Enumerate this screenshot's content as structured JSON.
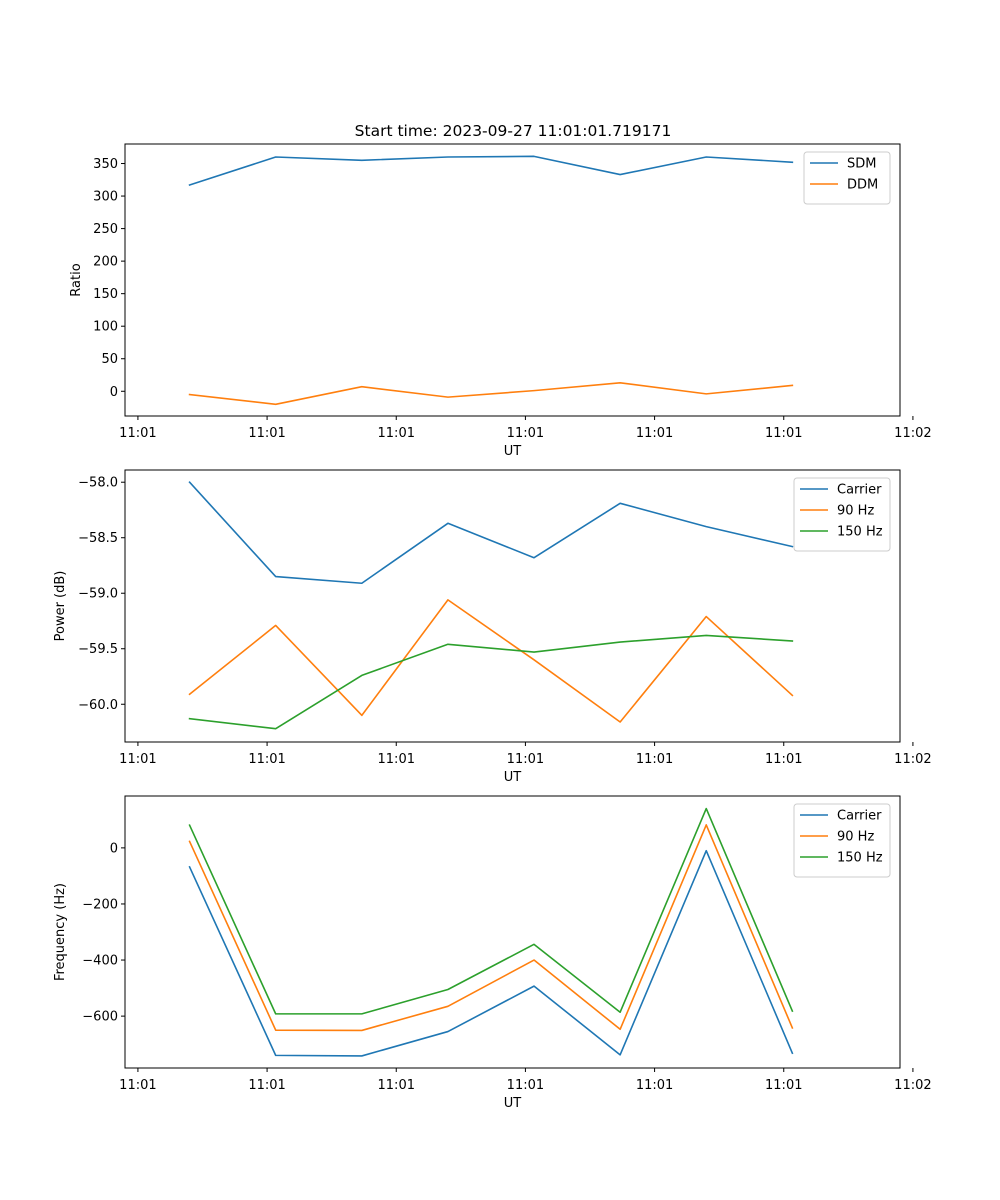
{
  "figure_title": "Start time: 2023-09-27 11:01:01.719171",
  "chart_data": [
    {
      "type": "line",
      "title": "Start time: 2023-09-27 11:01:01.719171",
      "xlabel": "UT",
      "ylabel": "Ratio",
      "x": [
        0,
        1,
        2,
        3,
        4,
        5,
        6,
        7
      ],
      "xlim": [
        -0.75,
        8.25
      ],
      "x_tick_positions": [
        -0.6,
        0.9,
        2.4,
        3.9,
        5.4,
        6.9,
        8.4
      ],
      "x_tick_labels": [
        "11:01",
        "11:01",
        "11:01",
        "11:01",
        "11:01",
        "11:01",
        "11:02"
      ],
      "ylim": [
        -38,
        380
      ],
      "y_ticks": [
        0,
        50,
        100,
        150,
        200,
        250,
        300,
        350
      ],
      "y_tick_labels": [
        "0",
        "50",
        "100",
        "150",
        "200",
        "250",
        "300",
        "350"
      ],
      "legend": "top-right",
      "series": [
        {
          "name": "SDM",
          "color": "#1f77b4",
          "values": [
            317,
            360,
            355,
            360,
            361,
            333,
            360,
            352
          ]
        },
        {
          "name": "DDM",
          "color": "#ff7f0e",
          "values": [
            -5,
            -20,
            7,
            -9,
            1,
            13,
            -4,
            9
          ]
        }
      ]
    },
    {
      "type": "line",
      "title": "",
      "xlabel": "UT",
      "ylabel": "Power (dB)",
      "x": [
        0,
        1,
        2,
        3,
        4,
        5,
        6,
        7
      ],
      "xlim": [
        -0.75,
        8.25
      ],
      "x_tick_positions": [
        -0.6,
        0.9,
        2.4,
        3.9,
        5.4,
        6.9,
        8.4
      ],
      "x_tick_labels": [
        "11:01",
        "11:01",
        "11:01",
        "11:01",
        "11:01",
        "11:01",
        "11:02"
      ],
      "ylim": [
        -60.34,
        -57.89
      ],
      "y_ticks": [
        -60.0,
        -59.5,
        -59.0,
        -58.5,
        -58.0
      ],
      "y_tick_labels": [
        "−60.0",
        "−59.5",
        "−59.0",
        "−58.5",
        "−58.0"
      ],
      "legend": "top-right",
      "series": [
        {
          "name": "Carrier",
          "color": "#1f77b4",
          "values": [
            -58.0,
            -58.85,
            -58.91,
            -58.37,
            -58.68,
            -58.19,
            -58.4,
            -58.58
          ]
        },
        {
          "name": "90 Hz",
          "color": "#ff7f0e",
          "values": [
            -59.91,
            -59.29,
            -60.1,
            -59.06,
            -59.6,
            -60.16,
            -59.21,
            -59.92
          ]
        },
        {
          "name": "150 Hz",
          "color": "#2ca02c",
          "values": [
            -60.13,
            -60.22,
            -59.74,
            -59.46,
            -59.53,
            -59.44,
            -59.38,
            -59.43
          ]
        }
      ]
    },
    {
      "type": "line",
      "title": "",
      "xlabel": "UT",
      "ylabel": "Frequency (Hz)",
      "x": [
        0,
        1,
        2,
        3,
        4,
        5,
        6,
        7
      ],
      "xlim": [
        -0.75,
        8.25
      ],
      "x_tick_positions": [
        -0.6,
        0.9,
        2.4,
        3.9,
        5.4,
        6.9,
        8.4
      ],
      "x_tick_labels": [
        "11:01",
        "11:01",
        "11:01",
        "11:01",
        "11:01",
        "11:01",
        "11:02"
      ],
      "ylim": [
        -785,
        185
      ],
      "y_ticks": [
        -600,
        -400,
        -200,
        0
      ],
      "y_tick_labels": [
        "−600",
        "−400",
        "−200",
        "0"
      ],
      "legend": "top-right",
      "series": [
        {
          "name": "Carrier",
          "color": "#1f77b4",
          "values": [
            -68,
            -740,
            -742,
            -655,
            -493,
            -738,
            -10,
            -732
          ]
        },
        {
          "name": "90 Hz",
          "color": "#ff7f0e",
          "values": [
            23,
            -650,
            -651,
            -565,
            -400,
            -647,
            82,
            -642
          ]
        },
        {
          "name": "150 Hz",
          "color": "#2ca02c",
          "values": [
            81,
            -592,
            -592,
            -505,
            -344,
            -586,
            140,
            -582
          ]
        }
      ]
    }
  ]
}
